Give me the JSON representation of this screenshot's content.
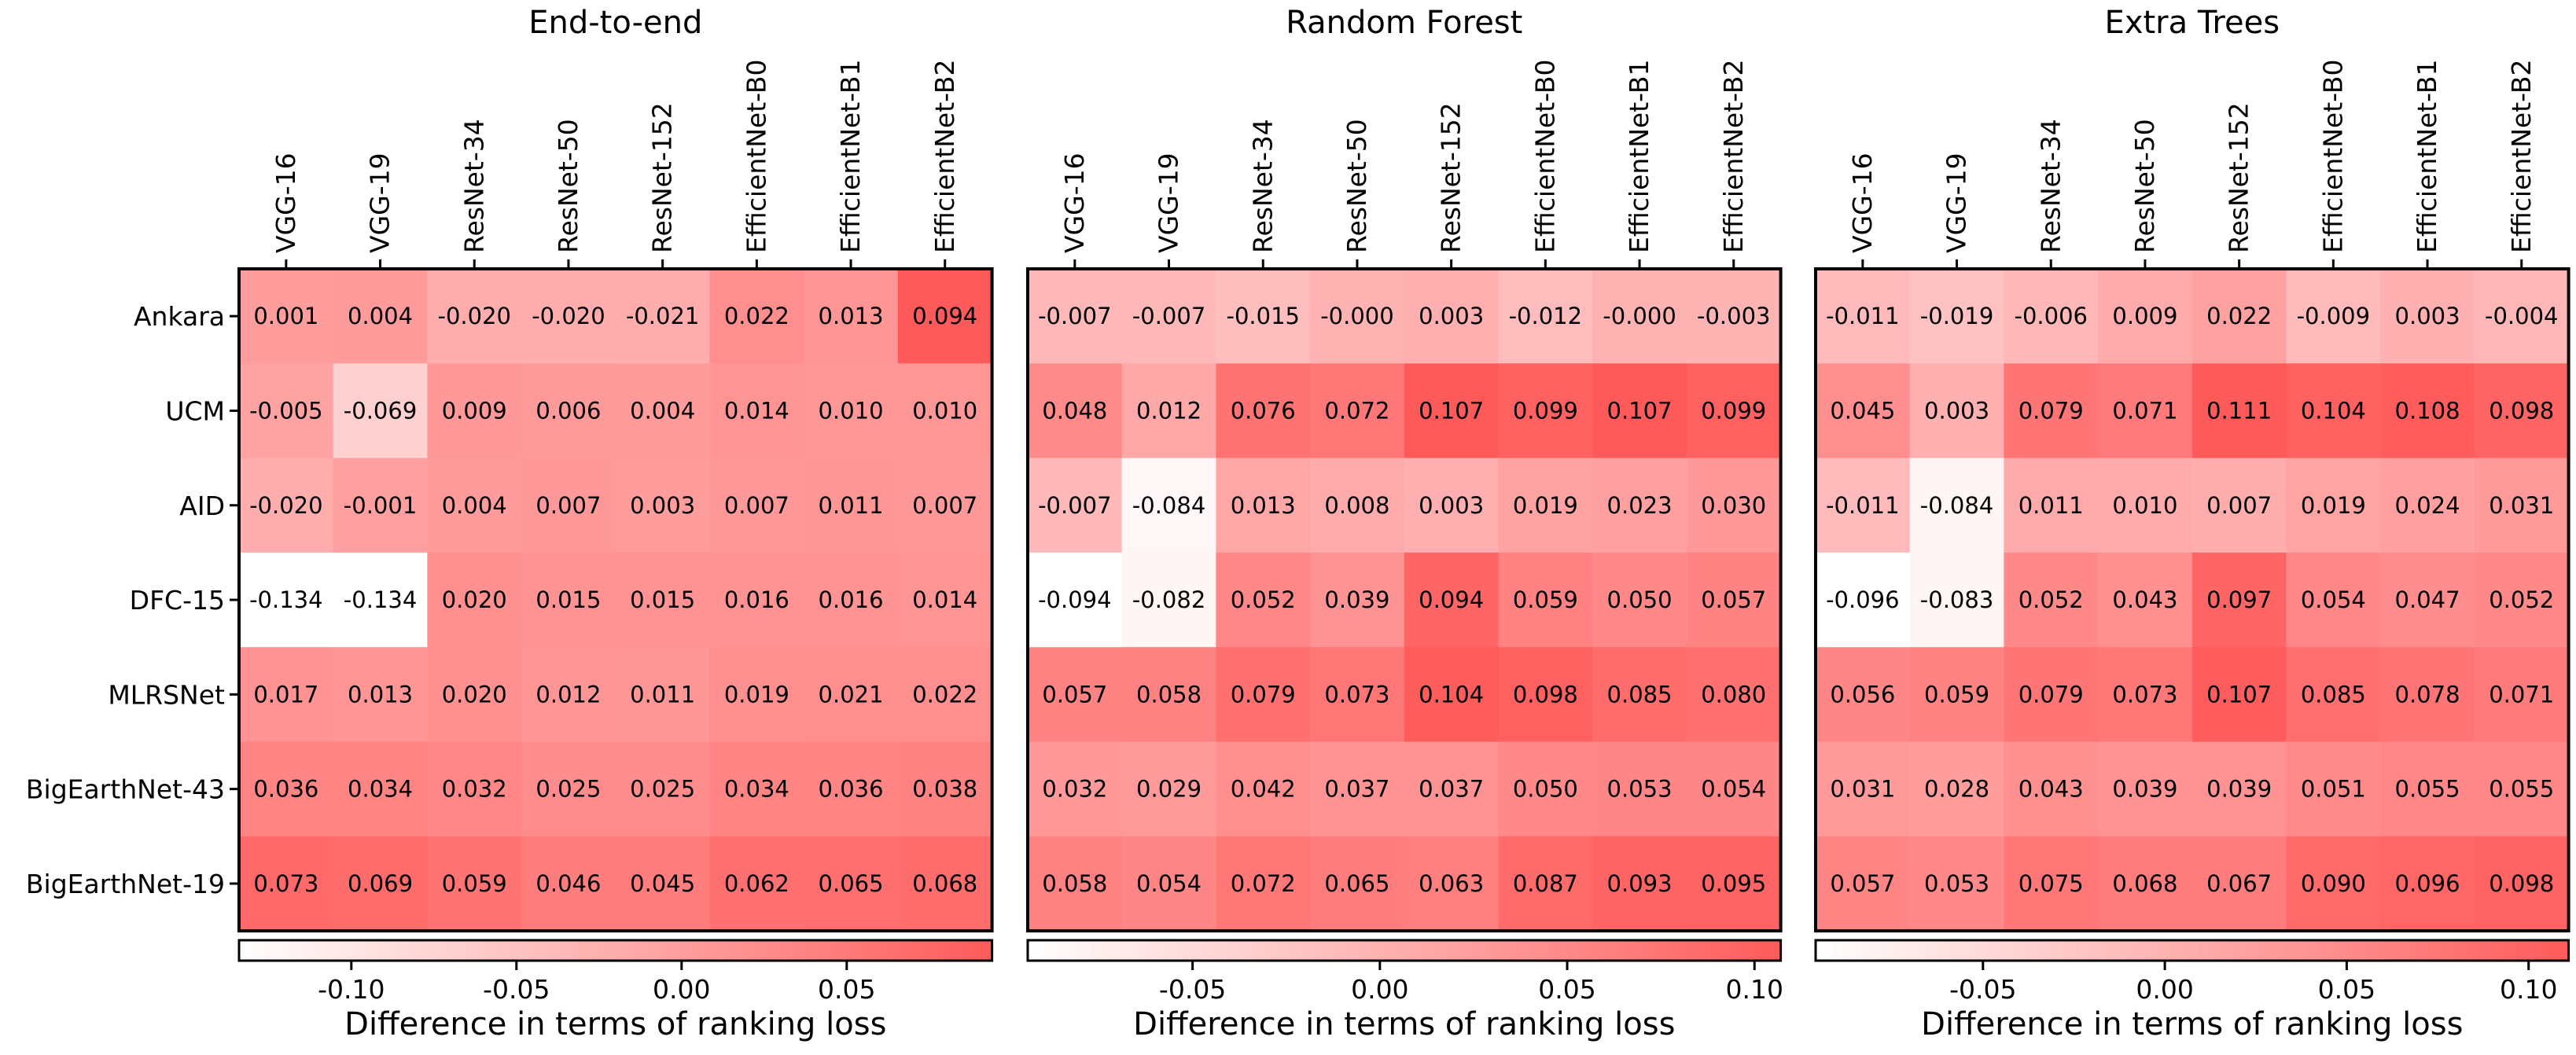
{
  "chart_data": {
    "type": "heatmap",
    "rows": [
      "Ankara",
      "UCM",
      "AID",
      "DFC-15",
      "MLRSNet",
      "BigEarthNet-43",
      "BigEarthNet-19"
    ],
    "columns": [
      "VGG-16",
      "VGG-19",
      "ResNet-34",
      "ResNet-50",
      "ResNet-152",
      "EfficientNet-B0",
      "EfficientNet-B1",
      "EfficientNet-B2"
    ],
    "colormap": {
      "low": "#ffffff",
      "high": "#ff5a5a"
    },
    "panels": [
      {
        "title": "End-to-end",
        "xlabel": "Difference in terms of ranking loss",
        "range": [
          -0.134,
          0.094
        ],
        "colorbar_ticks": [
          {
            "value": -0.1,
            "label": "-0.10"
          },
          {
            "value": -0.05,
            "label": "-0.05"
          },
          {
            "value": 0,
            "label": "0.00"
          },
          {
            "value": 0.05,
            "label": "0.05"
          }
        ],
        "values": [
          [
            0.001,
            0.004,
            -0.02,
            -0.02,
            -0.021,
            0.022,
            0.013,
            0.094
          ],
          [
            -0.005,
            -0.069,
            0.009,
            0.006,
            0.004,
            0.014,
            0.01,
            0.01
          ],
          [
            -0.02,
            -0.001,
            0.004,
            0.007,
            0.003,
            0.007,
            0.011,
            0.007
          ],
          [
            -0.134,
            -0.134,
            0.02,
            0.015,
            0.015,
            0.016,
            0.016,
            0.014
          ],
          [
            0.017,
            0.013,
            0.02,
            0.012,
            0.011,
            0.019,
            0.021,
            0.022
          ],
          [
            0.036,
            0.034,
            0.032,
            0.025,
            0.025,
            0.034,
            0.036,
            0.038
          ],
          [
            0.073,
            0.069,
            0.059,
            0.046,
            0.045,
            0.062,
            0.065,
            0.068
          ]
        ],
        "labels": [
          [
            "0.001",
            "0.004",
            "-0.020",
            "-0.020",
            "-0.021",
            "0.022",
            "0.013",
            "0.094"
          ],
          [
            "-0.005",
            "-0.069",
            "0.009",
            "0.006",
            "0.004",
            "0.014",
            "0.010",
            "0.010"
          ],
          [
            "-0.020",
            "-0.001",
            "0.004",
            "0.007",
            "0.003",
            "0.007",
            "0.011",
            "0.007"
          ],
          [
            "-0.134",
            "-0.134",
            "0.020",
            "0.015",
            "0.015",
            "0.016",
            "0.016",
            "0.014"
          ],
          [
            "0.017",
            "0.013",
            "0.020",
            "0.012",
            "0.011",
            "0.019",
            "0.021",
            "0.022"
          ],
          [
            "0.036",
            "0.034",
            "0.032",
            "0.025",
            "0.025",
            "0.034",
            "0.036",
            "0.038"
          ],
          [
            "0.073",
            "0.069",
            "0.059",
            "0.046",
            "0.045",
            "0.062",
            "0.065",
            "0.068"
          ]
        ]
      },
      {
        "title": "Random Forest",
        "xlabel": "Difference in terms of ranking loss",
        "range": [
          -0.094,
          0.107
        ],
        "colorbar_ticks": [
          {
            "value": -0.05,
            "label": "-0.05"
          },
          {
            "value": 0,
            "label": "0.00"
          },
          {
            "value": 0.05,
            "label": "0.05"
          },
          {
            "value": 0.1,
            "label": "0.10"
          }
        ],
        "values": [
          [
            -0.007,
            -0.007,
            -0.015,
            -0.0,
            0.003,
            -0.012,
            -0.0,
            -0.003
          ],
          [
            0.048,
            0.012,
            0.076,
            0.072,
            0.107,
            0.099,
            0.107,
            0.099
          ],
          [
            -0.007,
            -0.084,
            0.013,
            0.008,
            0.003,
            0.019,
            0.023,
            0.03
          ],
          [
            -0.094,
            -0.082,
            0.052,
            0.039,
            0.094,
            0.059,
            0.05,
            0.057
          ],
          [
            0.057,
            0.058,
            0.079,
            0.073,
            0.104,
            0.098,
            0.085,
            0.08
          ],
          [
            0.032,
            0.029,
            0.042,
            0.037,
            0.037,
            0.05,
            0.053,
            0.054
          ],
          [
            0.058,
            0.054,
            0.072,
            0.065,
            0.063,
            0.087,
            0.093,
            0.095
          ]
        ],
        "labels": [
          [
            "-0.007",
            "-0.007",
            "-0.015",
            "-0.000",
            "0.003",
            "-0.012",
            "-0.000",
            "-0.003"
          ],
          [
            "0.048",
            "0.012",
            "0.076",
            "0.072",
            "0.107",
            "0.099",
            "0.107",
            "0.099"
          ],
          [
            "-0.007",
            "-0.084",
            "0.013",
            "0.008",
            "0.003",
            "0.019",
            "0.023",
            "0.030"
          ],
          [
            "-0.094",
            "-0.082",
            "0.052",
            "0.039",
            "0.094",
            "0.059",
            "0.050",
            "0.057"
          ],
          [
            "0.057",
            "0.058",
            "0.079",
            "0.073",
            "0.104",
            "0.098",
            "0.085",
            "0.080"
          ],
          [
            "0.032",
            "0.029",
            "0.042",
            "0.037",
            "0.037",
            "0.050",
            "0.053",
            "0.054"
          ],
          [
            "0.058",
            "0.054",
            "0.072",
            "0.065",
            "0.063",
            "0.087",
            "0.093",
            "0.095"
          ]
        ]
      },
      {
        "title": "Extra Trees",
        "xlabel": "Difference in terms of ranking loss",
        "range": [
          -0.096,
          0.111
        ],
        "colorbar_ticks": [
          {
            "value": -0.05,
            "label": "-0.05"
          },
          {
            "value": 0,
            "label": "0.00"
          },
          {
            "value": 0.05,
            "label": "0.05"
          },
          {
            "value": 0.1,
            "label": "0.10"
          }
        ],
        "values": [
          [
            -0.011,
            -0.019,
            -0.006,
            0.009,
            0.022,
            -0.009,
            0.003,
            -0.004
          ],
          [
            0.045,
            0.003,
            0.079,
            0.071,
            0.111,
            0.104,
            0.108,
            0.098
          ],
          [
            -0.011,
            -0.084,
            0.011,
            0.01,
            0.007,
            0.019,
            0.024,
            0.031
          ],
          [
            -0.096,
            -0.083,
            0.052,
            0.043,
            0.097,
            0.054,
            0.047,
            0.052
          ],
          [
            0.056,
            0.059,
            0.079,
            0.073,
            0.107,
            0.085,
            0.078,
            0.071
          ],
          [
            0.031,
            0.028,
            0.043,
            0.039,
            0.039,
            0.051,
            0.055,
            0.055
          ],
          [
            0.057,
            0.053,
            0.075,
            0.068,
            0.067,
            0.09,
            0.096,
            0.098
          ]
        ],
        "labels": [
          [
            "-0.011",
            "-0.019",
            "-0.006",
            "0.009",
            "0.022",
            "-0.009",
            "0.003",
            "-0.004"
          ],
          [
            "0.045",
            "0.003",
            "0.079",
            "0.071",
            "0.111",
            "0.104",
            "0.108",
            "0.098"
          ],
          [
            "-0.011",
            "-0.084",
            "0.011",
            "0.010",
            "0.007",
            "0.019",
            "0.024",
            "0.031"
          ],
          [
            "-0.096",
            "-0.083",
            "0.052",
            "0.043",
            "0.097",
            "0.054",
            "0.047",
            "0.052"
          ],
          [
            "0.056",
            "0.059",
            "0.079",
            "0.073",
            "0.107",
            "0.085",
            "0.078",
            "0.071"
          ],
          [
            "0.031",
            "0.028",
            "0.043",
            "0.039",
            "0.039",
            "0.051",
            "0.055",
            "0.055"
          ],
          [
            "0.057",
            "0.053",
            "0.075",
            "0.068",
            "0.067",
            "0.090",
            "0.096",
            "0.098"
          ]
        ]
      }
    ]
  }
}
